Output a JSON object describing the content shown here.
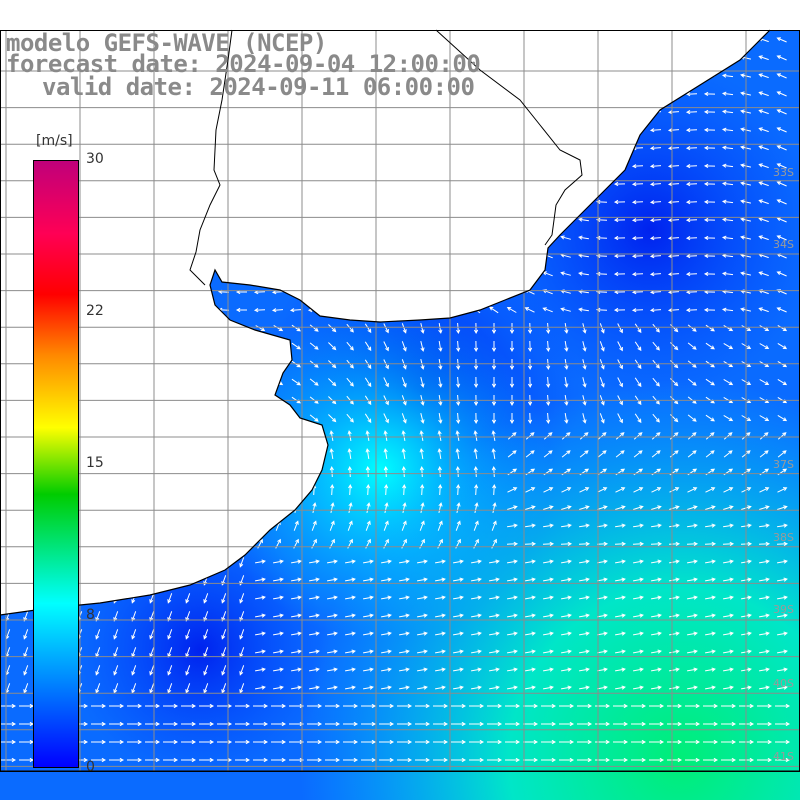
{
  "title_lines": [
    "modelo GEFS-WAVE (NCEP)",
    "forecast date: 2024-09-04 12:00:00",
    "valid date: 2024-09-11 06:00:00"
  ],
  "colorbar": {
    "unit": "[m/s]",
    "ticks": [
      "30",
      "22",
      "15",
      "8",
      "0"
    ],
    "range": [
      0,
      30
    ]
  },
  "latitude_labels": [
    "33S",
    "34S",
    "37S",
    "38S",
    "39S",
    "40S",
    "41S"
  ],
  "colors": {
    "land": "#ffffff",
    "coast": "#000000",
    "grid": "#888888",
    "arrow": "#ffffff",
    "low_wind": "#0033ff",
    "high_wind": "#00ee88"
  }
}
